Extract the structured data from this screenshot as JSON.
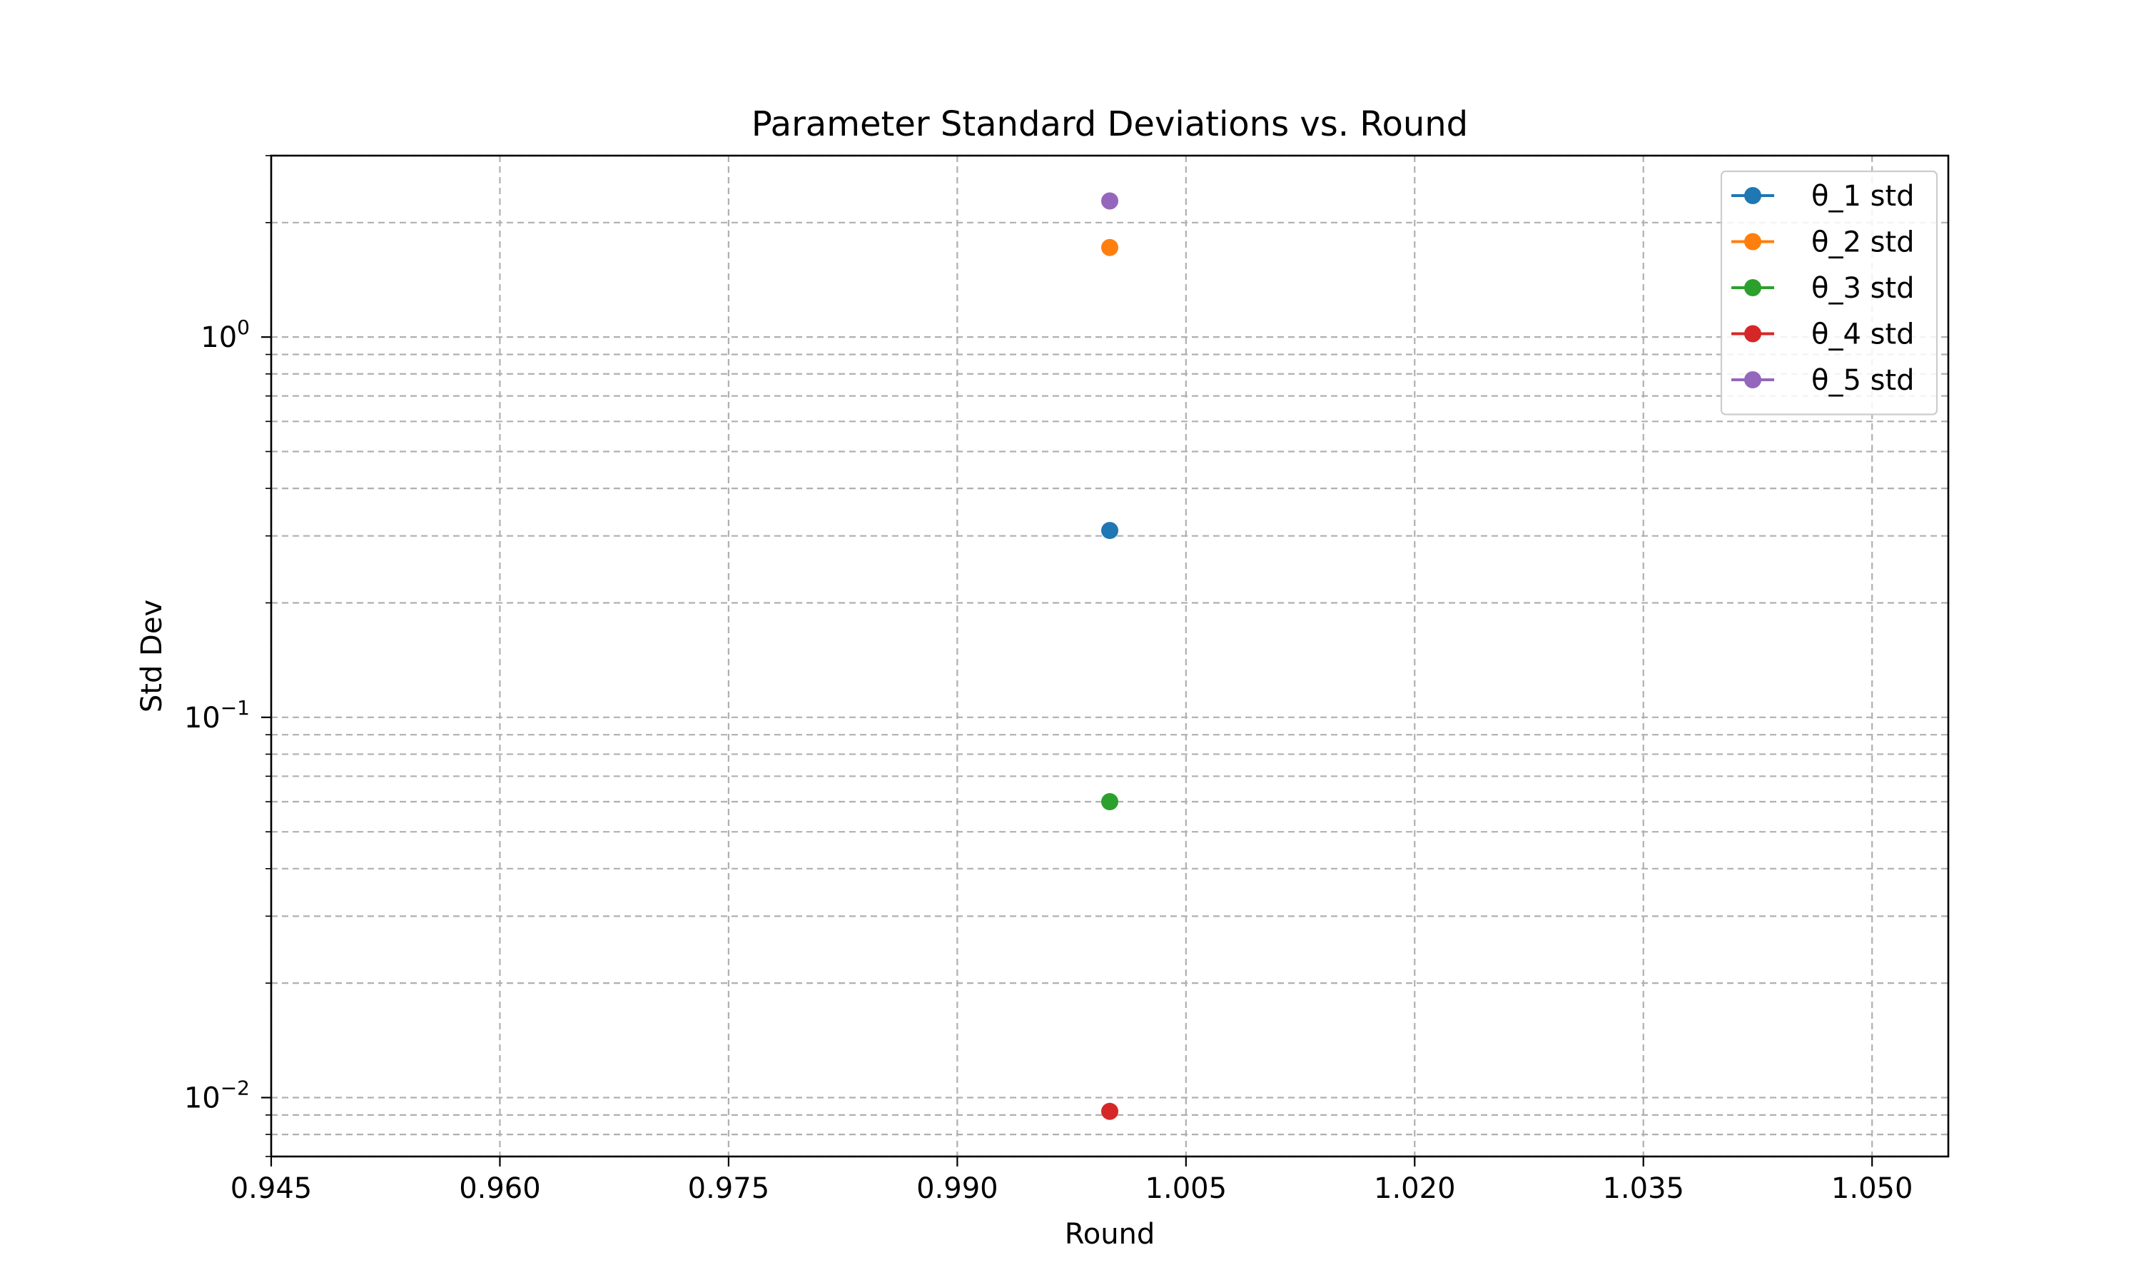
{
  "chart_data": {
    "type": "line",
    "title": "Parameter Standard Deviations vs. Round",
    "xlabel": "Round",
    "ylabel": "Std Dev",
    "xlim": [
      0.945,
      1.055
    ],
    "ylim": [
      0.007,
      3.0
    ],
    "y_scale": "log",
    "grid": true,
    "legend_position": "top-right",
    "x_ticks": [
      0.945,
      0.96,
      0.975,
      0.99,
      1.005,
      1.02,
      1.035,
      1.05
    ],
    "x_tick_labels": [
      "0.945",
      "0.960",
      "0.975",
      "0.990",
      "1.005",
      "1.020",
      "1.035",
      "1.050"
    ],
    "y_ticks": [
      {
        "value": 1,
        "base": "10",
        "exp": "0"
      },
      {
        "value": 0.1,
        "base": "10",
        "exp": "−1"
      },
      {
        "value": 0.01,
        "base": "10",
        "exp": "−2"
      }
    ],
    "series": [
      {
        "name": "θ_1 std",
        "color": "#1f77b4",
        "x": [
          1.0
        ],
        "y": [
          0.31
        ]
      },
      {
        "name": "θ_2 std",
        "color": "#ff7f0e",
        "x": [
          1.0
        ],
        "y": [
          1.72
        ]
      },
      {
        "name": "θ_3 std",
        "color": "#2ca02c",
        "x": [
          1.0
        ],
        "y": [
          0.06
        ]
      },
      {
        "name": "θ_4 std",
        "color": "#d62728",
        "x": [
          1.0
        ],
        "y": [
          0.0092
        ]
      },
      {
        "name": "θ_5 std",
        "color": "#9467bd",
        "x": [
          1.0
        ],
        "y": [
          2.28
        ]
      }
    ]
  }
}
